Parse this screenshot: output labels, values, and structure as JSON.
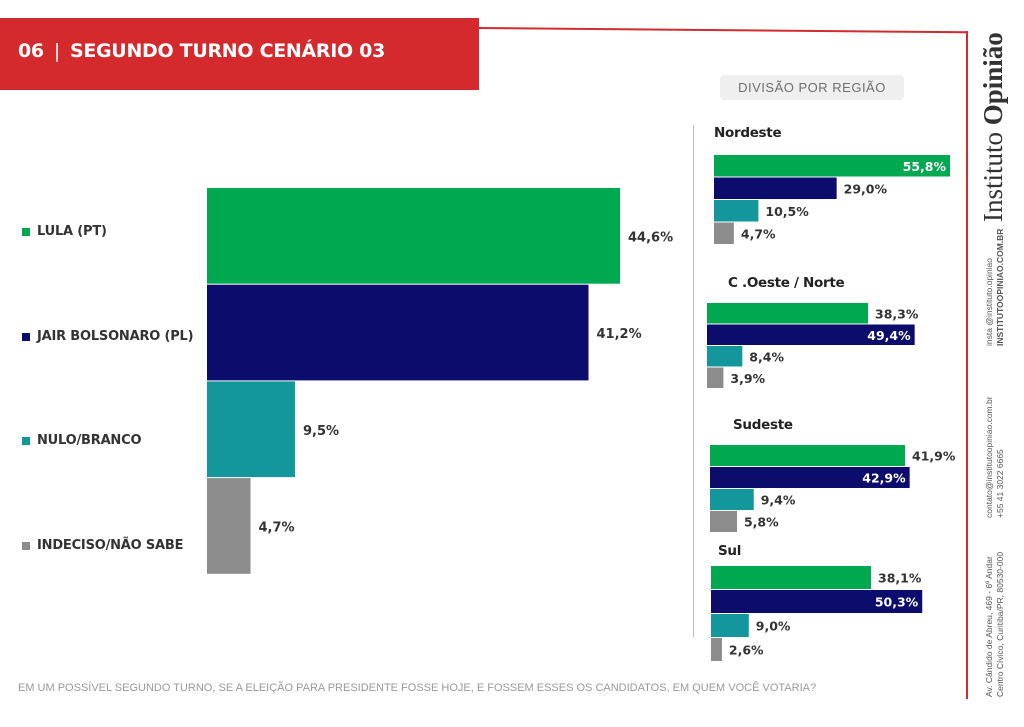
{
  "header": {
    "number": "06",
    "separator": "|",
    "title": "SEGUNDO TURNO CENÁRIO 03"
  },
  "region_heading": "DIVISÃO POR REGIÃO",
  "colors": {
    "lula": "#00a94f",
    "bolsonaro": "#0c0c6c",
    "nulo": "#13979d",
    "indeciso": "#8c8c8c",
    "accent": "#d42a2d"
  },
  "legend": [
    {
      "label": "LULA (PT)",
      "color": "#00a94f"
    },
    {
      "label": "JAIR BOLSONARO (PL)",
      "color": "#0c0c6c"
    },
    {
      "label": "NULO/BRANCO",
      "color": "#13979d"
    },
    {
      "label": "INDECISO/NÃO SABE",
      "color": "#8c8c8c"
    }
  ],
  "chart_data": [
    {
      "type": "bar",
      "orientation": "horizontal",
      "title": "SEGUNDO TURNO CENÁRIO 03",
      "categories": [
        "LULA (PT)",
        "JAIR BOLSONARO (PL)",
        "NULO/BRANCO",
        "INDECISO/NÃO SABE"
      ],
      "values": [
        44.6,
        41.2,
        9.5,
        4.7
      ],
      "labels": [
        "44,6%",
        "41,2%",
        "9,5%",
        "4,7%"
      ],
      "colors": [
        "#00a94f",
        "#0c0c6c",
        "#13979d",
        "#8c8c8c"
      ]
    },
    {
      "type": "bar",
      "orientation": "horizontal",
      "title": "Nordeste",
      "categories": [
        "LULA (PT)",
        "JAIR BOLSONARO (PL)",
        "NULO/BRANCO",
        "INDECISO/NÃO SABE"
      ],
      "values": [
        55.8,
        29.0,
        10.5,
        4.7
      ],
      "labels": [
        "55,8%",
        "29,0%",
        "10,5%",
        "4,7%"
      ]
    },
    {
      "type": "bar",
      "orientation": "horizontal",
      "title": "C .Oeste / Norte",
      "categories": [
        "LULA (PT)",
        "JAIR BOLSONARO (PL)",
        "NULO/BRANCO",
        "INDECISO/NÃO SABE"
      ],
      "values": [
        38.3,
        49.4,
        8.4,
        3.9
      ],
      "labels": [
        "38,3%",
        "49,4%",
        "8,4%",
        "3,9%"
      ]
    },
    {
      "type": "bar",
      "orientation": "horizontal",
      "title": "Sudeste",
      "categories": [
        "LULA (PT)",
        "JAIR BOLSONARO (PL)",
        "NULO/BRANCO",
        "INDECISO/NÃO SABE"
      ],
      "values": [
        41.9,
        42.9,
        9.4,
        5.8
      ],
      "labels": [
        "41,9%",
        "42,9%",
        "9,4%",
        "5,8%"
      ]
    },
    {
      "type": "bar",
      "orientation": "horizontal",
      "title": "Sul",
      "categories": [
        "LULA (PT)",
        "JAIR BOLSONARO (PL)",
        "NULO/BRANCO",
        "INDECISO/NÃO SABE"
      ],
      "values": [
        38.1,
        50.3,
        9.0,
        2.6
      ],
      "labels": [
        "38,1%",
        "50,3%",
        "9,0%",
        "2,6%"
      ]
    }
  ],
  "footnote": "EM UM POSSÍVEL SEGUNDO TURNO, SE A ELEIÇÃO PARA PRESIDENTE FOSSE HOJE, E FOSSEM ESSES OS CANDIDATOS, EM QUEM VOCÊ VOTARIA?",
  "brand": {
    "first": "Instituto ",
    "second": "Opinião"
  },
  "sidebar": {
    "insta": "insta @instituto.opiniao",
    "website": "INSTITUTOOPINIAO.COM.BR",
    "email": "contato@institutoopiniao.com.br",
    "phone": "+55 41 3022 6665",
    "address1": "Av. Cândido de Abreu, 469 - 6º Andar",
    "address2": "Centro Cívico, Curitiba/PR, 80530-000"
  }
}
